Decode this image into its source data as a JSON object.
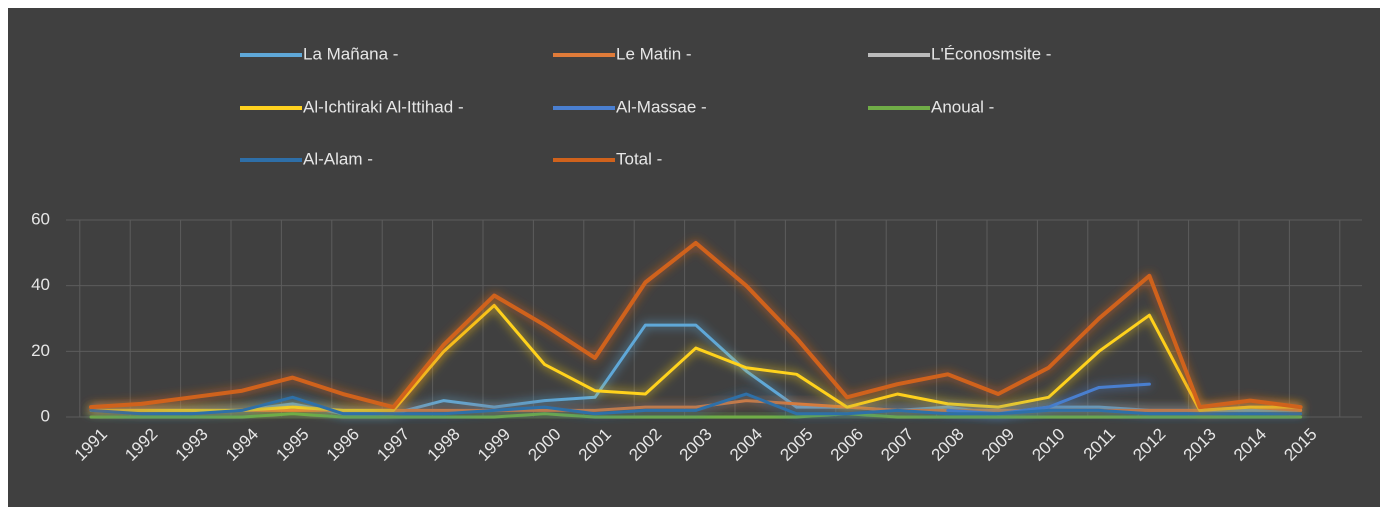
{
  "chart_data": {
    "type": "line",
    "categories": [
      "1991",
      "1992",
      "1993",
      "1994",
      "1995",
      "1996",
      "1997",
      "1998",
      "1999",
      "2000",
      "2001",
      "2002",
      "2003",
      "2004",
      "2005",
      "2006",
      "2007",
      "2008",
      "2009",
      "2010",
      "2011",
      "2012",
      "2013",
      "2014",
      "2015"
    ],
    "series": [
      {
        "name": "La Mañana  -",
        "color": "#5fa8d8",
        "values": [
          2,
          2,
          2,
          2,
          4,
          1,
          1,
          5,
          3,
          5,
          6,
          28,
          28,
          14,
          3,
          3,
          2,
          3,
          1,
          3,
          3,
          2,
          2,
          2,
          2
        ]
      },
      {
        "name": "Le Matin -",
        "color": "#e07b39",
        "values": [
          2,
          2,
          2,
          2,
          2,
          2,
          2,
          2,
          2,
          2,
          2,
          3,
          3,
          5,
          4,
          3,
          2,
          2,
          2,
          2,
          2,
          2,
          2,
          3,
          2
        ]
      },
      {
        "name": "L'Éconosmsite -",
        "color": "#bbbbbb",
        "values": [
          2,
          2,
          2,
          2,
          2,
          2,
          2,
          2,
          2,
          2,
          2,
          2,
          2,
          2,
          2,
          2,
          2,
          2,
          2,
          2,
          2,
          2,
          2,
          2,
          2
        ]
      },
      {
        "name": "Al-Ichtiraki Al-Ittihad -",
        "color": "#ffd21f",
        "values": [
          2,
          2,
          2,
          2,
          3,
          2,
          2,
          20,
          34,
          16,
          8,
          7,
          21,
          15,
          13,
          3,
          7,
          4,
          3,
          6,
          20,
          31,
          2,
          3,
          3
        ]
      },
      {
        "name": "Al-Massae -",
        "color": "#4a7fd0",
        "values": [
          null,
          null,
          null,
          null,
          null,
          null,
          null,
          null,
          null,
          null,
          null,
          null,
          null,
          null,
          null,
          null,
          null,
          2,
          1,
          3,
          9,
          10,
          null,
          null,
          null
        ]
      },
      {
        "name": "Anoual -",
        "color": "#70ad47",
        "values": [
          0,
          0,
          0,
          0,
          1,
          0,
          0,
          0,
          0,
          1,
          0,
          0,
          0,
          0,
          0,
          1,
          0,
          0,
          0,
          0,
          0,
          0,
          0,
          0,
          0
        ]
      },
      {
        "name": "Al-Alam -",
        "color": "#2e6fa8",
        "values": [
          2,
          1,
          1,
          2,
          6,
          1,
          1,
          1,
          2,
          3,
          1,
          2,
          2,
          7,
          1,
          1,
          2,
          1,
          1,
          2,
          2,
          1,
          1,
          1,
          1
        ]
      },
      {
        "name": "Total  -",
        "color": "#d0621c",
        "values": [
          3,
          4,
          6,
          8,
          12,
          7,
          3,
          22,
          37,
          28,
          18,
          41,
          53,
          40,
          24,
          6,
          10,
          13,
          7,
          15,
          30,
          43,
          3,
          5,
          3
        ]
      }
    ],
    "ylim": [
      0,
      60
    ],
    "yticks": [
      0,
      20,
      40,
      60
    ],
    "grid": true
  }
}
